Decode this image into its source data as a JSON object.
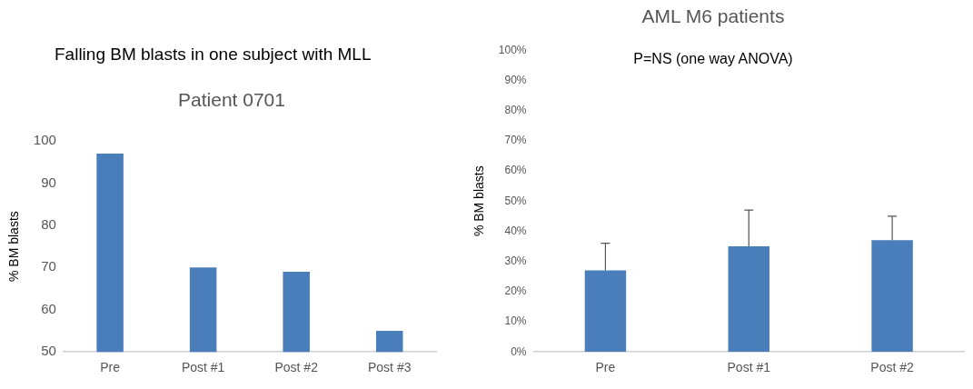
{
  "chart_data": [
    {
      "type": "bar",
      "title": "Falling BM blasts in one subject with MLL",
      "subtitle": "Patient 0701",
      "ylabel": "% BM blasts",
      "categories": [
        "Pre",
        "Post #1",
        "Post #2",
        "Post #3"
      ],
      "series": [
        {
          "color": "#4a7ebb",
          "values": [
            97,
            70,
            69,
            55
          ]
        }
      ],
      "ylim": [
        50,
        100
      ],
      "yticks": [
        50,
        60,
        70,
        80,
        90,
        100
      ],
      "grid": false,
      "legend": false
    },
    {
      "type": "bar",
      "title": "AML M6 patients",
      "subtitle": "P=NS (one way ANOVA)",
      "ylabel": "% BM blasts",
      "categories": [
        "Pre",
        "Post #1",
        "Post #2"
      ],
      "series": [
        {
          "color": "#4a7ebb",
          "values": [
            27,
            35,
            37
          ],
          "errors": [
            [
              27,
              36
            ],
            [
              35,
              47
            ],
            [
              37,
              45
            ]
          ]
        }
      ],
      "ylim": [
        0,
        100
      ],
      "yticks": [
        {
          "value": 0,
          "label": "0%"
        },
        {
          "value": 10,
          "label": "10%"
        },
        {
          "value": 20,
          "label": "20%"
        },
        {
          "value": 30,
          "label": "30%"
        },
        {
          "value": 40,
          "label": "40%"
        },
        {
          "value": 50,
          "label": "50%"
        },
        {
          "value": 60,
          "label": "60%"
        },
        {
          "value": 70,
          "label": "70%"
        },
        {
          "value": 80,
          "label": "80%"
        },
        {
          "value": 90,
          "label": "90%"
        },
        {
          "value": 100,
          "label": "100%"
        }
      ],
      "grid": false,
      "legend": false
    }
  ]
}
